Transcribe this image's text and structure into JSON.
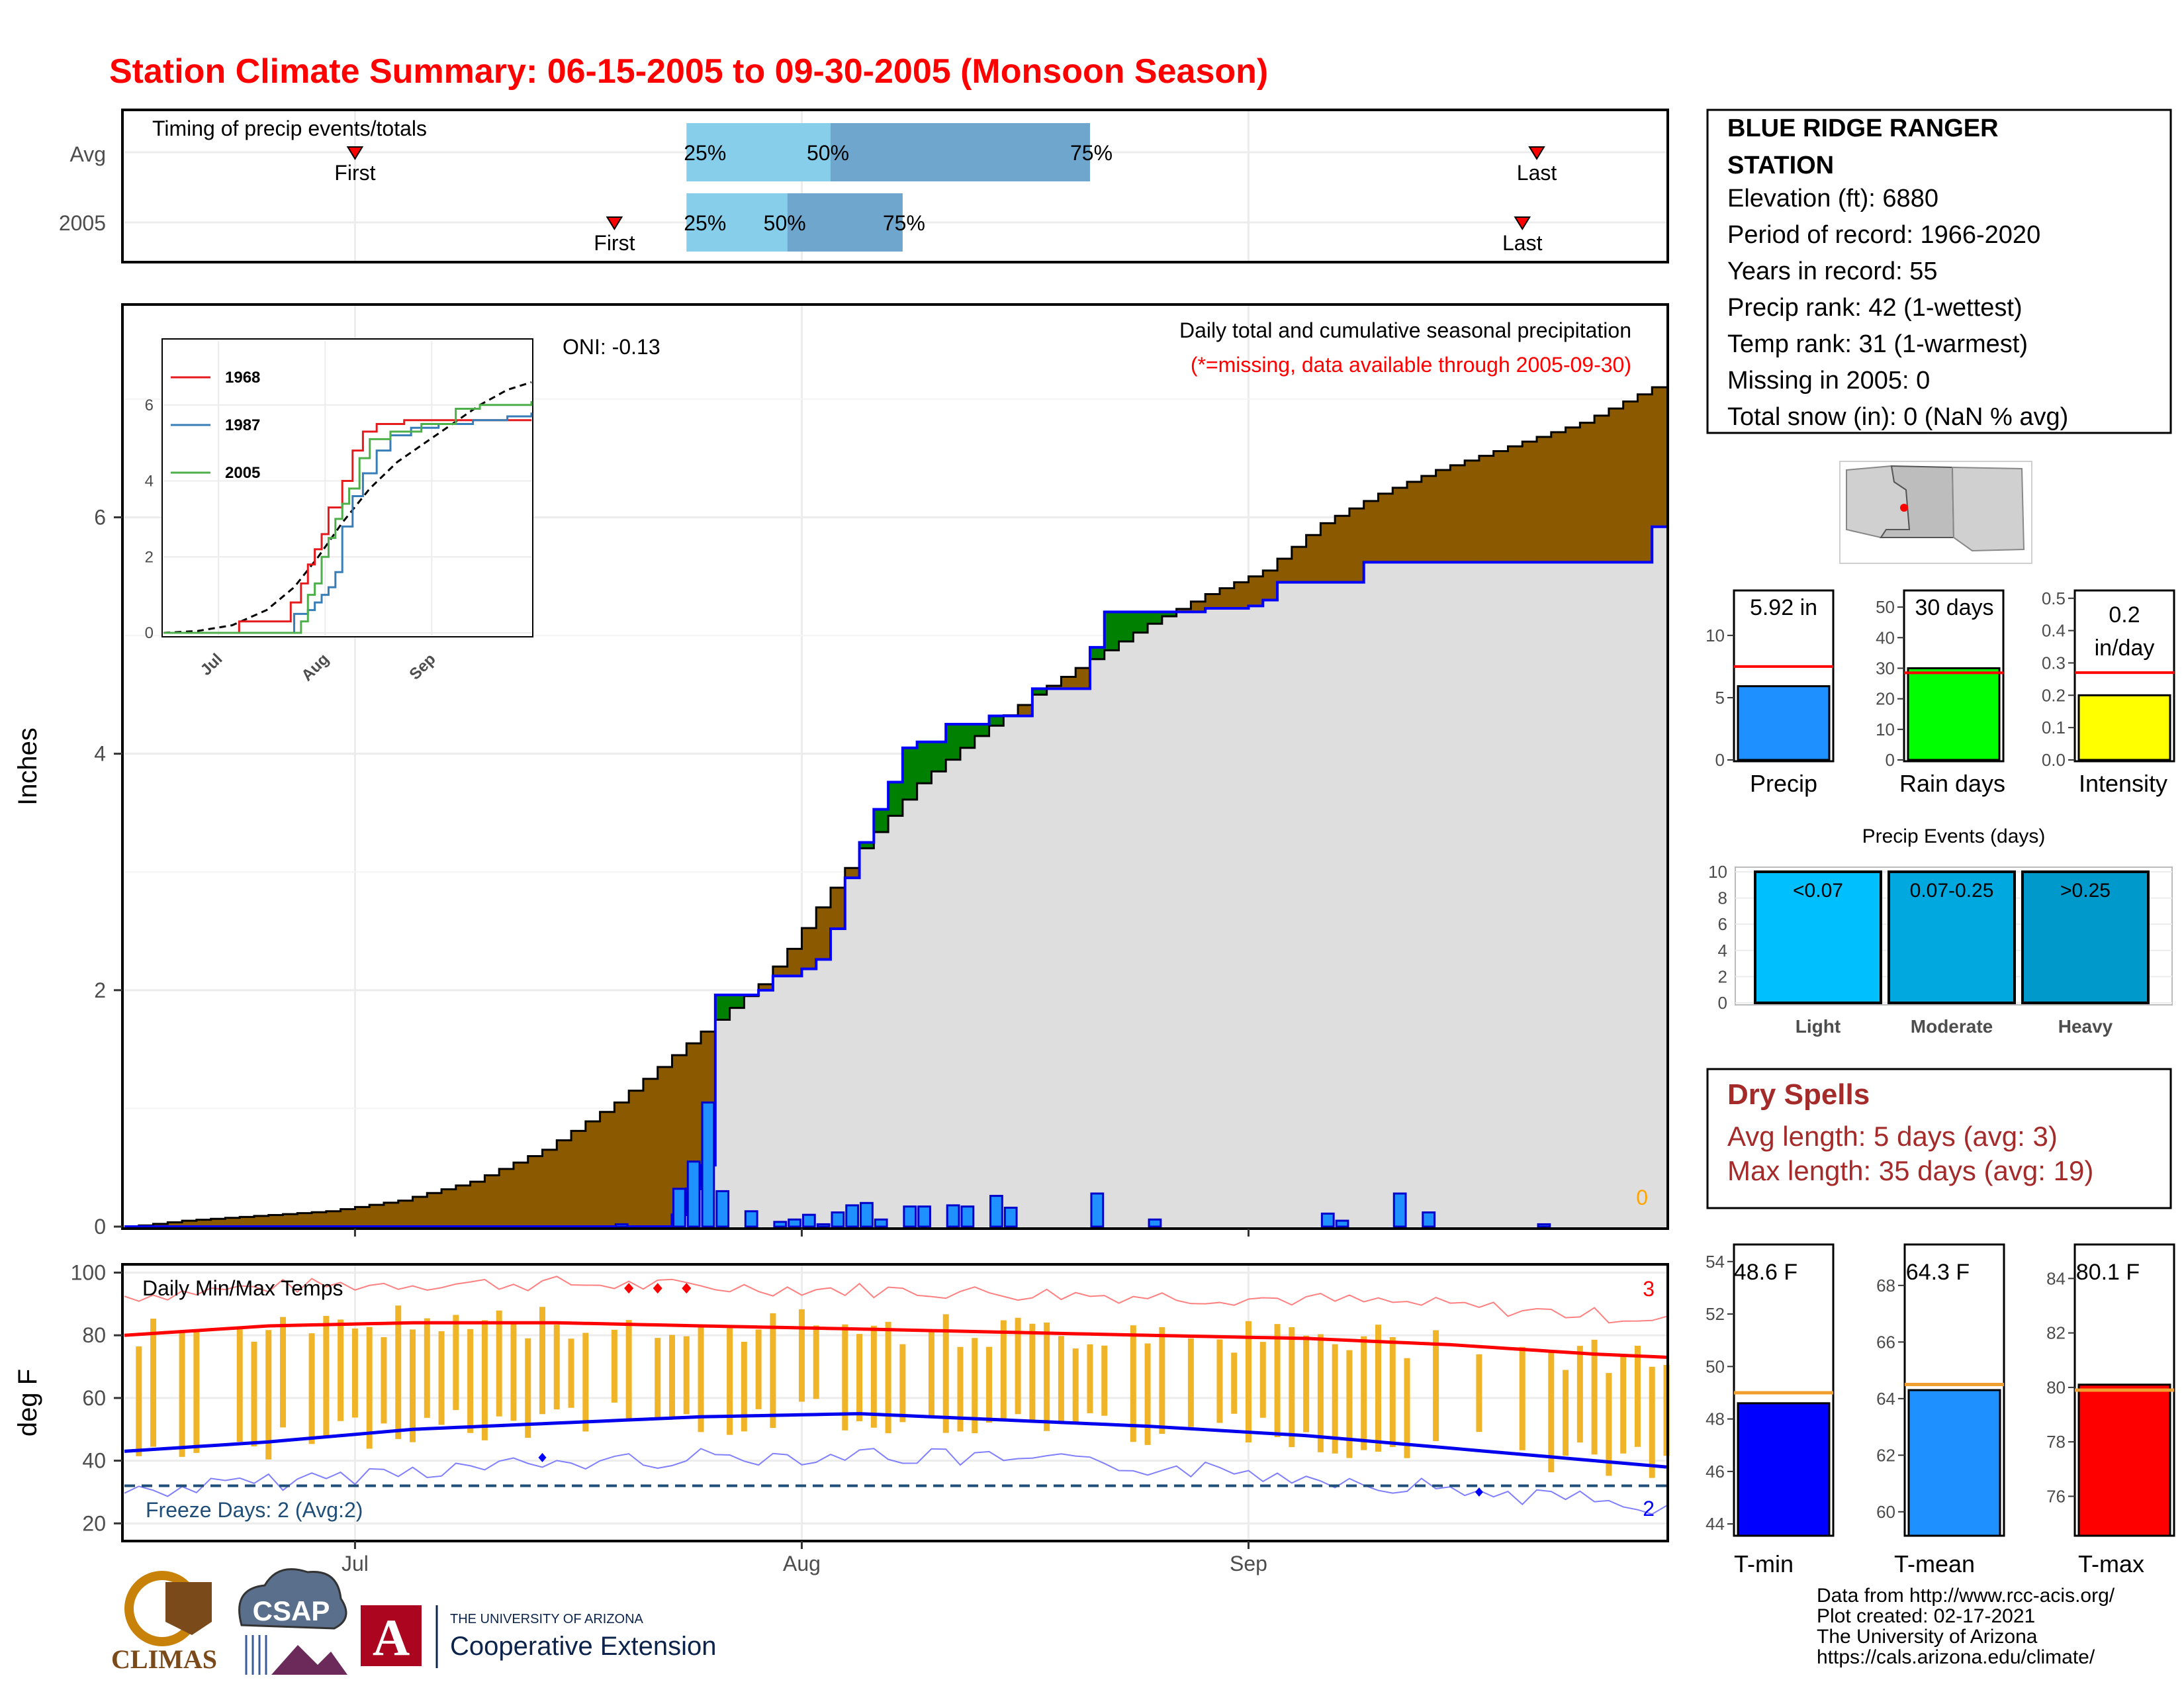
{
  "title": "Station Climate Summary: 06-15-2005 to 09-30-2005 (Monsoon Season)",
  "colors": {
    "title": "#ff0000",
    "brown": "#8b5a00",
    "green": "#008000",
    "light_gray": "#dedede",
    "blue_line": "#0000ff",
    "bar_blue": "#1e90ff",
    "light_sky": "#87ceeb",
    "steel": "#6ea6cd",
    "orange": "#f0b429",
    "red": "#ff0000",
    "yellow": "#ffff00",
    "lime": "#00ff00",
    "dry_text": "#a52a2a"
  },
  "timing": {
    "title": "Timing of precip events/totals",
    "rows": [
      "Avg",
      "2005"
    ],
    "avg": {
      "first": "07-01",
      "p25": "07-24",
      "p50": "08-03",
      "p75": "08-21",
      "last": "09-21"
    },
    "y2005": {
      "first": "07-19",
      "p25": "07-24",
      "p50": "07-31",
      "p75": "08-08",
      "last": "09-20"
    },
    "labels": {
      "first": "First",
      "last": "Last",
      "p25": "25%",
      "p50": "50%",
      "p75": "75%"
    }
  },
  "precip_panel": {
    "ylabel": "Inches",
    "title": "Daily total and cumulative seasonal precipitation",
    "subtitle": "(*=missing, data available through 2005-09-30)",
    "oni": "ONI: -0.13",
    "missing_count": "0",
    "yticks": [
      "0",
      "2",
      "4",
      "6"
    ],
    "xticks": [
      "Jul",
      "Aug",
      "Sep"
    ]
  },
  "inset": {
    "yticks": [
      "0",
      "2",
      "4",
      "6"
    ],
    "xticks": [
      "Jul",
      "Aug",
      "Sep"
    ],
    "legend": [
      "1968",
      "1987",
      "2005"
    ]
  },
  "temp_panel": {
    "ylabel": "deg F",
    "title": "Daily Min/Max Temps",
    "freeze": "Freeze Days: 2 (Avg:2)",
    "count_hot": "3",
    "count_cold": "2",
    "yticks": [
      "100",
      "80",
      "60",
      "40",
      "20"
    ],
    "xticks": [
      "Jul",
      "Aug",
      "Sep"
    ]
  },
  "station": {
    "name_line1": "BLUE RIDGE RANGER",
    "name_line2": "STATION",
    "elevation": "Elevation (ft): 6880",
    "period": "Period of record: 1966-2020",
    "years": "Years in record: 55",
    "precip_rank": "Precip rank: 42 (1-wettest)",
    "temp_rank": "Temp rank: 31 (1-warmest)",
    "missing": "Missing in 2005: 0",
    "snow": "Total snow (in): 0 (NaN % avg)"
  },
  "stats": {
    "precip": {
      "label": "Precip",
      "value_text": "5.92 in",
      "yticks": [
        "0",
        "5",
        "10"
      ]
    },
    "rain_days": {
      "label": "Rain days",
      "value_text": "30 days",
      "yticks": [
        "0",
        "10",
        "20",
        "30",
        "40",
        "50"
      ]
    },
    "intensity": {
      "label": "Intensity",
      "value_text_1": "0.2",
      "value_text_2": "in/day",
      "yticks": [
        "0.0",
        "0.1",
        "0.2",
        "0.3",
        "0.4",
        "0.5"
      ]
    }
  },
  "events": {
    "title": "Precip Events (days)",
    "yticks": [
      "0",
      "2",
      "4",
      "6",
      "8",
      "10"
    ],
    "bars": [
      {
        "label": "Light",
        "range": "<0.07"
      },
      {
        "label": "Moderate",
        "range": "0.07-0.25"
      },
      {
        "label": "Heavy",
        "range": ">0.25"
      }
    ]
  },
  "dry": {
    "title": "Dry Spells",
    "avg": "Avg length: 5 days (avg: 3)",
    "max": "Max length: 35 days (avg: 19)"
  },
  "temps": {
    "tmin": {
      "label": "T-min",
      "value_text": "48.6 F",
      "yticks": [
        "44",
        "46",
        "48",
        "50",
        "52",
        "54"
      ]
    },
    "tmean": {
      "label": "T-mean",
      "value_text": "64.3 F",
      "yticks": [
        "60",
        "62",
        "64",
        "66",
        "68"
      ]
    },
    "tmax": {
      "label": "T-max",
      "value_text": "80.1 F",
      "yticks": [
        "76",
        "78",
        "80",
        "82",
        "84"
      ]
    }
  },
  "footer": {
    "line1": "Data from http://www.rcc-acis.org/",
    "line2": "Plot created: 02-17-2021",
    "line3": "The University of Arizona",
    "line4": "https://cals.arizona.edu/climate/",
    "logo_climas": "CLIMAS",
    "logo_csap": "CSAP",
    "ua_small": "THE UNIVERSITY OF ARIZONA",
    "ua_big": "Cooperative Extension",
    "ua_a": "A"
  },
  "chart_data": [
    {
      "type": "area",
      "title": "Daily total and cumulative seasonal precipitation",
      "ylabel": "Inches",
      "ylim": [
        0,
        7.8
      ],
      "xlim": [
        "06-15",
        "09-30"
      ],
      "avg_cumulative": {
        "x": [
          "06-17",
          "06-20",
          "06-25",
          "06-30",
          "07-05",
          "07-10",
          "07-15",
          "07-20",
          "07-24",
          "07-27",
          "07-30",
          "08-01",
          "08-03",
          "08-06",
          "08-10",
          "08-14",
          "08-18",
          "08-22",
          "08-26",
          "08-30",
          "09-03",
          "09-07",
          "09-11",
          "09-15",
          "09-20",
          "09-25",
          "09-30"
        ],
        "y": [
          0.01,
          0.05,
          0.09,
          0.13,
          0.22,
          0.38,
          0.65,
          1.05,
          1.45,
          1.75,
          2.05,
          2.35,
          2.7,
          3.2,
          3.75,
          4.15,
          4.5,
          4.8,
          5.1,
          5.35,
          5.55,
          5.95,
          6.2,
          6.4,
          6.6,
          6.8,
          7.1
        ]
      },
      "cumulative_2005": {
        "x": [
          "06-15",
          "07-23",
          "07-24",
          "07-25",
          "07-26",
          "07-27",
          "07-30",
          "07-31",
          "08-01",
          "08-02",
          "08-03",
          "08-04",
          "08-05",
          "08-06",
          "08-07",
          "08-08",
          "08-09",
          "08-10",
          "08-12",
          "08-15",
          "08-18",
          "08-22",
          "08-23",
          "08-30",
          "09-01",
          "09-02",
          "09-03",
          "09-04",
          "09-08",
          "09-10",
          "09-30"
        ],
        "y": [
          0.0,
          0.0,
          0.1,
          0.32,
          0.52,
          1.96,
          2.0,
          2.12,
          2.12,
          2.18,
          2.26,
          2.52,
          2.95,
          3.25,
          3.53,
          3.76,
          4.05,
          4.1,
          4.25,
          4.32,
          4.55,
          4.9,
          5.2,
          5.23,
          5.23,
          5.25,
          5.3,
          5.45,
          5.45,
          5.62,
          5.92
        ]
      },
      "daily_2005": {
        "x": [
          "07-20",
          "07-24",
          "07-25",
          "07-26",
          "07-27",
          "07-29",
          "07-31",
          "08-01",
          "08-02",
          "08-03",
          "08-04",
          "08-05",
          "08-06",
          "08-07",
          "08-09",
          "08-10",
          "08-12",
          "08-13",
          "08-15",
          "08-16",
          "08-22",
          "08-26",
          "09-07",
          "09-08",
          "09-12",
          "09-14",
          "09-22"
        ],
        "y": [
          0.02,
          0.32,
          0.55,
          1.05,
          0.3,
          0.13,
          0.04,
          0.06,
          0.1,
          0.02,
          0.12,
          0.18,
          0.2,
          0.06,
          0.17,
          0.17,
          0.18,
          0.17,
          0.26,
          0.16,
          0.28,
          0.06,
          0.11,
          0.05,
          0.28,
          0.12,
          0.02
        ]
      }
    },
    {
      "type": "line",
      "title": "Daily Min/Max Temps",
      "ylabel": "deg F",
      "ylim": [
        15,
        102
      ],
      "avg_max": {
        "x": [
          "06-15",
          "06-25",
          "07-05",
          "07-15",
          "07-25",
          "08-05",
          "08-15",
          "08-25",
          "09-05",
          "09-15",
          "09-25",
          "09-30"
        ],
        "y": [
          80,
          83,
          84,
          84,
          83,
          82,
          81,
          80,
          79,
          77,
          74,
          73
        ]
      },
      "avg_min": {
        "x": [
          "06-15",
          "06-25",
          "07-05",
          "07-15",
          "07-25",
          "08-05",
          "08-15",
          "08-25",
          "09-05",
          "09-15",
          "09-25",
          "09-30"
        ],
        "y": [
          43,
          46,
          50,
          52,
          54,
          55,
          53,
          51,
          48,
          44,
          40,
          38
        ]
      },
      "record_high_days": 3,
      "record_low_days": 2,
      "freeze_line": 32
    },
    {
      "type": "bar",
      "title": "Precip",
      "categories": [
        "Precip"
      ],
      "values": [
        5.92
      ],
      "avg": 7.5,
      "ylim": [
        0,
        13.5
      ]
    },
    {
      "type": "bar",
      "title": "Rain days",
      "categories": [
        "Rain days"
      ],
      "values": [
        30
      ],
      "avg": 28.5,
      "ylim": [
        0,
        55
      ]
    },
    {
      "type": "bar",
      "title": "Intensity",
      "categories": [
        "Intensity"
      ],
      "values": [
        0.2
      ],
      "avg": 0.27,
      "ylim": [
        0,
        0.52
      ]
    },
    {
      "type": "bar",
      "title": "Precip Events (days)",
      "categories": [
        "Light",
        "Moderate",
        "Heavy"
      ],
      "values": [
        10,
        10,
        10
      ],
      "ylim": [
        0,
        10.2
      ]
    },
    {
      "type": "bar",
      "title": "Temperatures",
      "categories": [
        "T-min",
        "T-mean",
        "T-max"
      ],
      "values": [
        48.6,
        64.3,
        80.1
      ],
      "avg": [
        49.0,
        64.5,
        79.9
      ]
    }
  ]
}
